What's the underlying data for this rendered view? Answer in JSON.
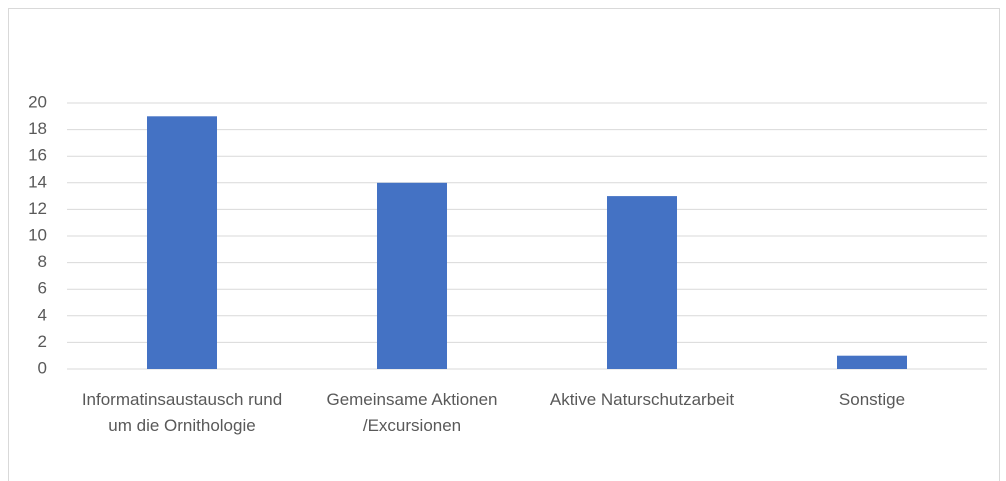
{
  "chart_data": {
    "type": "bar",
    "categories": [
      "Informatinsaustausch rund um die Ornithologie",
      "Gemeinsame Aktionen /Excursionen",
      "Aktive Naturschutzarbeit",
      "Sonstige"
    ],
    "values": [
      19,
      14,
      13,
      1
    ],
    "color": "#4472c4",
    "ylim": [
      0,
      20
    ],
    "yticks": [
      0,
      2,
      4,
      6,
      8,
      10,
      12,
      14,
      16,
      18,
      20
    ],
    "grid": true
  }
}
